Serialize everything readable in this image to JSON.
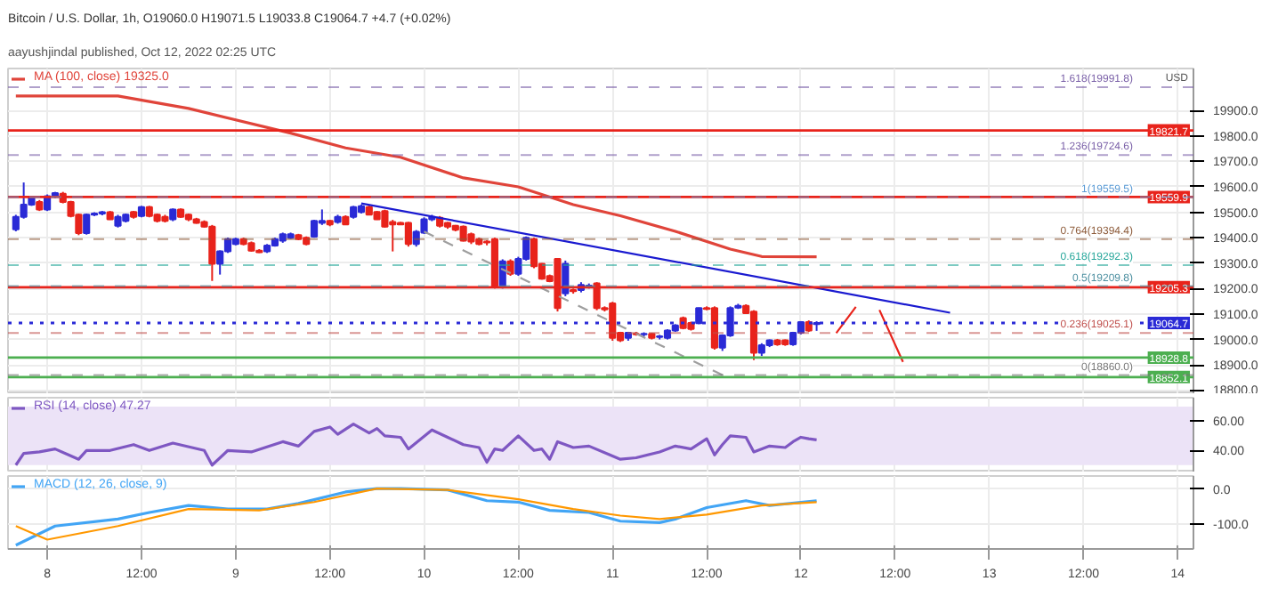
{
  "chart_data": [
    {
      "type": "candlestick",
      "title": "Bitcoin / U.S. Dollar, 1h, O19060.0 H19071.5 L19033.8 C19064.7 +4.7 (+0.02%)",
      "ylabel": "USD",
      "annotations": [
        "aayushjindal published, Oct 12, 2022 02:25 UTC"
      ],
      "x": [
        "2022-10-07T20:00",
        "2022-10-07T21:00",
        "2022-10-07T22:00",
        "2022-10-07T23:00",
        "2022-10-08T00:00",
        "2022-10-08T01:00",
        "2022-10-08T02:00",
        "2022-10-08T03:00",
        "2022-10-08T04:00",
        "2022-10-08T05:00",
        "2022-10-08T06:00",
        "2022-10-08T07:00",
        "2022-10-08T08:00",
        "2022-10-08T09:00",
        "2022-10-08T10:00",
        "2022-10-08T11:00",
        "2022-10-08T12:00",
        "2022-10-08T13:00",
        "2022-10-08T14:00",
        "2022-10-08T15:00",
        "2022-10-08T16:00",
        "2022-10-08T17:00",
        "2022-10-08T18:00",
        "2022-10-08T19:00",
        "2022-10-08T20:00",
        "2022-10-08T21:00",
        "2022-10-08T22:00",
        "2022-10-08T23:00",
        "2022-10-09T00:00",
        "2022-10-09T01:00",
        "2022-10-09T02:00",
        "2022-10-09T03:00",
        "2022-10-09T04:00",
        "2022-10-09T05:00",
        "2022-10-09T06:00",
        "2022-10-09T07:00",
        "2022-10-09T08:00",
        "2022-10-09T09:00",
        "2022-10-09T10:00",
        "2022-10-09T11:00",
        "2022-10-09T12:00",
        "2022-10-09T13:00",
        "2022-10-09T14:00",
        "2022-10-09T15:00",
        "2022-10-09T16:00",
        "2022-10-09T17:00",
        "2022-10-09T18:00",
        "2022-10-09T19:00",
        "2022-10-09T20:00",
        "2022-10-09T21:00",
        "2022-10-09T22:00",
        "2022-10-09T23:00",
        "2022-10-10T00:00",
        "2022-10-10T01:00",
        "2022-10-10T02:00",
        "2022-10-10T03:00",
        "2022-10-10T04:00",
        "2022-10-10T05:00",
        "2022-10-10T06:00",
        "2022-10-10T07:00",
        "2022-10-10T08:00",
        "2022-10-10T09:00",
        "2022-10-10T10:00",
        "2022-10-10T11:00",
        "2022-10-10T12:00",
        "2022-10-10T13:00",
        "2022-10-10T14:00",
        "2022-10-10T15:00",
        "2022-10-10T16:00",
        "2022-10-10T17:00",
        "2022-10-10T18:00",
        "2022-10-10T19:00",
        "2022-10-10T20:00",
        "2022-10-10T21:00",
        "2022-10-10T22:00",
        "2022-10-10T23:00",
        "2022-10-11T00:00",
        "2022-10-11T01:00",
        "2022-10-11T02:00",
        "2022-10-11T03:00",
        "2022-10-11T04:00",
        "2022-10-11T05:00",
        "2022-10-11T06:00",
        "2022-10-11T07:00",
        "2022-10-11T08:00",
        "2022-10-11T09:00",
        "2022-10-11T10:00",
        "2022-10-11T11:00",
        "2022-10-11T12:00",
        "2022-10-11T13:00",
        "2022-10-11T14:00",
        "2022-10-11T15:00",
        "2022-10-11T16:00",
        "2022-10-11T17:00",
        "2022-10-11T18:00",
        "2022-10-11T19:00",
        "2022-10-11T20:00",
        "2022-10-11T21:00",
        "2022-10-11T22:00",
        "2022-10-11T23:00",
        "2022-10-12T00:00",
        "2022-10-12T01:00",
        "2022-10-12T02:00"
      ],
      "ohlc": [
        [
          19433,
          19490,
          19425,
          19482
        ],
        [
          19482,
          19617,
          19475,
          19530
        ],
        [
          19530,
          19565,
          19525,
          19559
        ],
        [
          19540,
          19548,
          19505,
          19511
        ],
        [
          19511,
          19570,
          19505,
          19563
        ],
        [
          19563,
          19580,
          19555,
          19575
        ],
        [
          19573,
          19580,
          19535,
          19540
        ],
        [
          19540,
          19545,
          19480,
          19485
        ],
        [
          19491,
          19495,
          19410,
          19418
        ],
        [
          19418,
          19495,
          19412,
          19491
        ],
        [
          19491,
          19500,
          19485,
          19495
        ],
        [
          19495,
          19505,
          19488,
          19500
        ],
        [
          19500,
          19505,
          19470,
          19472
        ],
        [
          19447,
          19490,
          19440,
          19482
        ],
        [
          19466,
          19495,
          19460,
          19491
        ],
        [
          19501,
          19505,
          19475,
          19482
        ],
        [
          19485,
          19525,
          19480,
          19520
        ],
        [
          19520,
          19525,
          19480,
          19485
        ],
        [
          19491,
          19495,
          19460,
          19466
        ],
        [
          19482,
          19490,
          19460,
          19466
        ],
        [
          19472,
          19515,
          19465,
          19511
        ],
        [
          19511,
          19515,
          19478,
          19482
        ],
        [
          19491,
          19495,
          19465,
          19472
        ],
        [
          19472,
          19478,
          19455,
          19458
        ],
        [
          19462,
          19468,
          19440,
          19443
        ],
        [
          19443,
          19450,
          19230,
          19297
        ],
        [
          19297,
          19350,
          19255,
          19346
        ],
        [
          19346,
          19400,
          19340,
          19394
        ],
        [
          19375,
          19400,
          19370,
          19394
        ],
        [
          19394,
          19400,
          19370,
          19375
        ],
        [
          19379,
          19385,
          19345,
          19349
        ],
        [
          19349,
          19355,
          19340,
          19343
        ],
        [
          19346,
          19375,
          19340,
          19369
        ],
        [
          19369,
          19400,
          19365,
          19394
        ],
        [
          19388,
          19420,
          19380,
          19414
        ],
        [
          19400,
          19420,
          19395,
          19414
        ],
        [
          19410,
          19415,
          19390,
          19394
        ],
        [
          19400,
          19405,
          19370,
          19375
        ],
        [
          19404,
          19470,
          19400,
          19466
        ],
        [
          19458,
          19511,
          19450,
          19466
        ],
        [
          19466,
          19470,
          19445,
          19452
        ],
        [
          19462,
          19490,
          19455,
          19482
        ],
        [
          19482,
          19488,
          19450,
          19452
        ],
        [
          19482,
          19525,
          19475,
          19520
        ],
        [
          19501,
          19530,
          19495,
          19524
        ],
        [
          19520,
          19528,
          19490,
          19491
        ],
        [
          19501,
          19505,
          19470,
          19472
        ],
        [
          19505,
          19510,
          19440,
          19443
        ],
        [
          19462,
          19470,
          19346,
          19452
        ],
        [
          19458,
          19462,
          19450,
          19452
        ],
        [
          19458,
          19462,
          19365,
          19375
        ],
        [
          19375,
          19430,
          19365,
          19423
        ],
        [
          19420,
          19480,
          19415,
          19472
        ],
        [
          19472,
          19490,
          19465,
          19482
        ],
        [
          19478,
          19485,
          19440,
          19447
        ],
        [
          19458,
          19462,
          19435,
          19443
        ],
        [
          19447,
          19450,
          19425,
          19431
        ],
        [
          19443,
          19448,
          19385,
          19388
        ],
        [
          19414,
          19420,
          19375,
          19385
        ],
        [
          19394,
          19400,
          19370,
          19375
        ],
        [
          19385,
          19390,
          19370,
          19381
        ],
        [
          19394,
          19400,
          19200,
          19210
        ],
        [
          19210,
          19315,
          19200,
          19307
        ],
        [
          19307,
          19315,
          19250,
          19258
        ],
        [
          19258,
          19325,
          19250,
          19317
        ],
        [
          19317,
          19405,
          19310,
          19400
        ],
        [
          19394,
          19400,
          19280,
          19288
        ],
        [
          19297,
          19300,
          19235,
          19239
        ],
        [
          19249,
          19255,
          19225,
          19229
        ],
        [
          19317,
          19320,
          19110,
          19123
        ],
        [
          19181,
          19310,
          19170,
          19297
        ],
        [
          19194,
          19200,
          19180,
          19190
        ],
        [
          19194,
          19225,
          19185,
          19214
        ],
        [
          19210,
          19220,
          19200,
          19212
        ],
        [
          19220,
          19225,
          19115,
          19123
        ],
        [
          19123,
          19130,
          19110,
          19118
        ],
        [
          19142,
          19148,
          18995,
          19006
        ],
        [
          19026,
          19030,
          18990,
          18997
        ],
        [
          19006,
          19030,
          18995,
          19026
        ],
        [
          19022,
          19030,
          19015,
          19020
        ],
        [
          19020,
          19028,
          19012,
          19022
        ],
        [
          19022,
          19026,
          19000,
          19006
        ],
        [
          19010,
          19018,
          19000,
          19012
        ],
        [
          19006,
          19040,
          19000,
          19035
        ],
        [
          19035,
          19060,
          19030,
          19055
        ],
        [
          19084,
          19090,
          19040,
          19045
        ],
        [
          19065,
          19070,
          19035,
          19041
        ],
        [
          19064,
          19125,
          19060,
          19123
        ],
        [
          19123,
          19130,
          19115,
          19120
        ],
        [
          19123,
          19130,
          18960,
          18968
        ],
        [
          18968,
          19020,
          18955,
          19016
        ],
        [
          19016,
          19130,
          19010,
          19123
        ],
        [
          19125,
          19140,
          19120,
          19132
        ],
        [
          19132,
          19138,
          19100,
          19103
        ],
        [
          19109,
          19115,
          18919,
          18948
        ],
        [
          18948,
          18985,
          18935,
          18977
        ],
        [
          18977,
          19000,
          18970,
          18997
        ],
        [
          18997,
          19002,
          18975,
          18981
        ],
        [
          18997,
          19000,
          18975,
          18981
        ],
        [
          18981,
          19030,
          18975,
          19026
        ],
        [
          19026,
          19072,
          19020,
          19068
        ],
        [
          19068,
          19075,
          19030,
          19035
        ],
        [
          19060,
          19071.5,
          19033.8,
          19064.7
        ]
      ],
      "colors": [
        "#2a2ad6",
        "#2a2ad6",
        "#2a2ad6",
        "#e8231b",
        "#2a2ad6",
        "#2a2ad6",
        "#e8231b",
        "#e8231b",
        "#e8231b",
        "#2a2ad6",
        "#2a2ad6",
        "#2a2ad6",
        "#e8231b",
        "#2a2ad6",
        "#2a2ad6",
        "#e8231b",
        "#2a2ad6",
        "#e8231b",
        "#e8231b",
        "#e8231b",
        "#2a2ad6",
        "#e8231b",
        "#e8231b",
        "#e8231b",
        "#e8231b",
        "#e8231b",
        "#2a2ad6",
        "#2a2ad6",
        "#2a2ad6",
        "#e8231b",
        "#e8231b",
        "#e8231b",
        "#2a2ad6",
        "#2a2ad6",
        "#2a2ad6",
        "#2a2ad6",
        "#e8231b",
        "#e8231b",
        "#2a2ad6",
        "#2a2ad6",
        "#e8231b",
        "#2a2ad6",
        "#e8231b",
        "#2a2ad6",
        "#2a2ad6",
        "#e8231b",
        "#e8231b",
        "#e8231b",
        "#e8231b",
        "#e8231b",
        "#e8231b",
        "#2a2ad6",
        "#2a2ad6",
        "#2a2ad6",
        "#e8231b",
        "#e8231b",
        "#e8231b",
        "#e8231b",
        "#e8231b",
        "#e8231b",
        "#e8231b",
        "#e8231b",
        "#2a2ad6",
        "#e8231b",
        "#2a2ad6",
        "#2a2ad6",
        "#e8231b",
        "#e8231b",
        "#e8231b",
        "#e8231b",
        "#2a2ad6",
        "#e8231b",
        "#2a2ad6",
        "#2a2ad6",
        "#e8231b",
        "#e8231b",
        "#e8231b",
        "#e8231b",
        "#2a2ad6",
        "#e8231b",
        "#2a2ad6",
        "#e8231b",
        "#2a2ad6",
        "#2a2ad6",
        "#2a2ad6",
        "#e8231b",
        "#e8231b",
        "#2a2ad6",
        "#e8231b",
        "#e8231b",
        "#2a2ad6",
        "#2a2ad6",
        "#2a2ad6",
        "#e8231b",
        "#e8231b",
        "#2a2ad6",
        "#2a2ad6",
        "#e8231b",
        "#e8231b",
        "#2a2ad6",
        "#2a2ad6",
        "#e8231b",
        "#2a2ad6"
      ],
      "series": [
        {
          "type": "line",
          "name": "MA (100, close) 19325.0",
          "color": "#e0443a",
          "x": [
            "2022-10-07T20:00",
            "2022-10-08T09:00",
            "2022-10-08T18:00",
            "2022-10-09T07:00",
            "2022-10-09T14:00",
            "2022-10-09T21:00",
            "2022-10-10T05:00",
            "2022-10-10T12:00",
            "2022-10-10T19:00",
            "2022-10-11T01:00",
            "2022-10-11T08:00",
            "2022-10-11T15:00",
            "2022-10-11T19:00",
            "2022-10-12T02:00"
          ],
          "values": [
            19957,
            19957,
            19908,
            19811,
            19753,
            19716,
            19635,
            19600,
            19530,
            19486,
            19425,
            19355,
            19326,
            19325
          ]
        },
        {
          "type": "line",
          "color": "#1a1ad0",
          "x": [
            "2022-10-09T16:00",
            "2022-10-12T19:00"
          ],
          "values": [
            19535,
            19105
          ]
        },
        {
          "type": "line",
          "color": "#e8231b",
          "x": [
            "2022-10-12T04:30",
            "2022-10-12T07:00",
            "2022-10-12T08:30",
            "2022-10-12T10:00",
            "2022-10-12T13:00"
          ],
          "values": [
            19025,
            19128,
            null,
            19116,
            18912
          ]
        },
        {
          "type": "line",
          "color": "#9e9e9e",
          "line_style": "dashed",
          "x": [
            "2022-10-10T00:00",
            "2022-10-11T14:00"
          ],
          "values": [
            19424,
            18860
          ]
        }
      ],
      "ref_lines": [
        {
          "axis": "y",
          "value": 19821.7,
          "label": "19821.7",
          "color": "#e8231b",
          "line_style": "solid"
        },
        {
          "axis": "y",
          "value": 19559.9,
          "label": "19559.9",
          "color": "#e8231b",
          "line_style": "solid"
        },
        {
          "axis": "y",
          "value": 19205.3,
          "label": "19205.3",
          "color": "#e8231b",
          "line_style": "solid"
        },
        {
          "axis": "y",
          "value": 18928.8,
          "label": "18928.8",
          "color": "#4caf50",
          "line_style": "solid"
        },
        {
          "axis": "y",
          "value": 18852.1,
          "label": "18852.1",
          "color": "#4caf50",
          "line_style": "solid"
        },
        {
          "axis": "y",
          "value": 19064.7,
          "label": "19064.7",
          "color": "#2a2ad6",
          "line_style": "dotted"
        },
        {
          "axis": "y",
          "value": 19991.8,
          "label": "1.618(19991.8)",
          "color": "#7b61a8",
          "line_style": "dashed"
        },
        {
          "axis": "y",
          "value": 19724.6,
          "label": "1.236(19724.6)",
          "color": "#7b61a8",
          "line_style": "dashed"
        },
        {
          "axis": "y",
          "value": 19559.5,
          "label": "1(19559.5)",
          "color": "#5b9bd5",
          "line_style": "dashed"
        },
        {
          "axis": "y",
          "value": 19394.4,
          "label": "0.764(19394.4)",
          "color": "#8d5b3a",
          "line_style": "dashed"
        },
        {
          "axis": "y",
          "value": 19292.3,
          "label": "0.618(19292.3)",
          "color": "#26a69a",
          "line_style": "dashed"
        },
        {
          "axis": "y",
          "value": 19209.8,
          "label": "0.5(19209.8)",
          "color": "#4c8fa0",
          "line_style": "dashed"
        },
        {
          "axis": "y",
          "value": 19025.1,
          "label": "0.236(19025.1)",
          "color": "#c0504d",
          "line_style": "dashed"
        },
        {
          "axis": "y",
          "value": 18860.0,
          "label": "0(18860.0)",
          "color": "#777777",
          "line_style": "dashed"
        }
      ],
      "xlim": [
        "2022-10-07T19:00",
        "2022-10-14T02:00"
      ],
      "xticks": [
        "2022-10-08",
        "2022-10-08T12:00",
        "2022-10-09",
        "2022-10-09T12:00",
        "2022-10-10",
        "2022-10-10T12:00",
        "2022-10-11",
        "2022-10-11T12:00",
        "2022-10-12",
        "2022-10-12T12:00",
        "2022-10-13",
        "2022-10-13T12:00",
        "2022-10-14"
      ],
      "ylim": [
        18785,
        20065
      ],
      "yticks": [
        {
          "value": 18800,
          "label": "18800.0"
        },
        {
          "value": 18900,
          "label": "18900.0"
        },
        {
          "value": 19000,
          "label": "19000.0"
        },
        {
          "value": 19100,
          "label": "19100.0"
        },
        {
          "value": 19200,
          "label": "19200.0"
        },
        {
          "value": 19300,
          "label": "19300.0"
        },
        {
          "value": 19400,
          "label": "19400.0"
        },
        {
          "value": 19500,
          "label": "19500.0"
        },
        {
          "value": 19600,
          "label": "19600.0"
        },
        {
          "value": 19700,
          "label": "19700.0"
        },
        {
          "value": 19800,
          "label": "19800.0"
        },
        {
          "value": 19900,
          "label": "19900.0"
        }
      ],
      "grid": true,
      "legend": "top left",
      "tick_labels": "y"
    },
    {
      "type": "line",
      "series": [
        {
          "name": "RSI (14, close) 47.27",
          "color": "#7e57c2",
          "x": [
            "2022-10-07T20:00",
            "2022-10-07T21:00",
            "2022-10-07T23:00",
            "2022-10-08T01:00",
            "2022-10-08T04:00",
            "2022-10-08T05:00",
            "2022-10-08T08:00",
            "2022-10-08T11:00",
            "2022-10-08T13:00",
            "2022-10-08T16:00",
            "2022-10-08T20:00",
            "2022-10-08T21:00",
            "2022-10-08T23:00",
            "2022-10-09T02:00",
            "2022-10-09T06:00",
            "2022-10-09T08:00",
            "2022-10-09T10:00",
            "2022-10-09T12:00",
            "2022-10-09T13:00",
            "2022-10-09T15:00",
            "2022-10-09T17:00",
            "2022-10-09T18:00",
            "2022-10-09T19:00",
            "2022-10-09T21:00",
            "2022-10-09T22:00",
            "2022-10-10T01:00",
            "2022-10-10T03:00",
            "2022-10-10T05:00",
            "2022-10-10T07:00",
            "2022-10-10T08:00",
            "2022-10-10T09:00",
            "2022-10-10T10:00",
            "2022-10-10T12:00",
            "2022-10-10T14:00",
            "2022-10-10T15:00",
            "2022-10-10T16:00",
            "2022-10-10T17:00",
            "2022-10-10T19:00",
            "2022-10-10T21:00",
            "2022-10-11T01:00",
            "2022-10-11T03:00",
            "2022-10-11T06:00",
            "2022-10-11T08:00",
            "2022-10-11T10:00",
            "2022-10-11T12:00",
            "2022-10-11T13:00",
            "2022-10-11T14:00",
            "2022-10-11T15:00",
            "2022-10-11T17:00",
            "2022-10-11T18:00",
            "2022-10-11T20:00",
            "2022-10-11T22:00",
            "2022-10-11T23:00",
            "2022-10-12T00:00",
            "2022-10-12T01:00",
            "2022-10-12T02:00"
          ],
          "values": [
            30,
            38,
            39,
            41,
            34,
            40,
            40,
            44,
            40,
            45,
            40,
            30,
            40,
            39,
            46,
            43,
            53,
            56,
            51,
            58,
            52,
            55,
            50,
            49,
            41,
            54,
            49,
            44,
            42,
            32,
            41,
            40,
            50,
            40,
            41,
            34,
            46,
            42,
            43,
            34,
            35,
            39,
            43,
            41,
            48,
            37,
            44,
            50,
            49,
            39,
            43,
            42,
            46,
            49,
            48,
            47.27
          ]
        }
      ],
      "bands": [
        {
          "axis": "y",
          "from": 30,
          "to": 70,
          "color": "#ece3f7"
        }
      ],
      "xlim": [
        "2022-10-07T19:00",
        "2022-10-14T02:00"
      ],
      "xticks": [
        "2022-10-08",
        "2022-10-08T12:00",
        "2022-10-09",
        "2022-10-09T12:00",
        "2022-10-10",
        "2022-10-10T12:00",
        "2022-10-11",
        "2022-10-11T12:00",
        "2022-10-12",
        "2022-10-12T12:00",
        "2022-10-13",
        "2022-10-13T12:00",
        "2022-10-14"
      ],
      "ylim": [
        25,
        76
      ],
      "yticks": [
        {
          "value": 40,
          "label": "40.00"
        },
        {
          "value": 60,
          "label": "60.00"
        }
      ],
      "grid": true,
      "legend": "top left",
      "tick_labels": "y"
    },
    {
      "type": "line",
      "series": [
        {
          "name": "MACD (12, 26, close, 9)",
          "color": "#42a5f5",
          "x": [
            "2022-10-07T20:00",
            "2022-10-08T01:00",
            "2022-10-08T09:00",
            "2022-10-08T13:00",
            "2022-10-08T18:00",
            "2022-10-08T23:00",
            "2022-10-09T04:00",
            "2022-10-09T08:00",
            "2022-10-09T14:00",
            "2022-10-09T18:00",
            "2022-10-09T21:00",
            "2022-10-10T03:00",
            "2022-10-10T08:00",
            "2022-10-10T12:00",
            "2022-10-10T16:00",
            "2022-10-10T21:00",
            "2022-10-11T01:00",
            "2022-10-11T06:00",
            "2022-10-11T08:00",
            "2022-10-11T12:00",
            "2022-10-11T17:00",
            "2022-10-11T20:00",
            "2022-10-12T02:00"
          ],
          "values": [
            -161,
            -106,
            -86,
            -67,
            -47,
            -57,
            -57,
            -41,
            -8,
            2,
            2,
            -2,
            -33,
            -37,
            -61,
            -67,
            -92,
            -96,
            -86,
            -53,
            -33,
            -47,
            -33
          ]
        },
        {
          "color": "#ff9800",
          "x": [
            "2022-10-07T20:00",
            "2022-10-08T00:00",
            "2022-10-08T09:00",
            "2022-10-08T18:00",
            "2022-10-09T03:00",
            "2022-10-09T10:00",
            "2022-10-09T18:00",
            "2022-10-10T03:00",
            "2022-10-10T12:00",
            "2022-10-10T19:00",
            "2022-10-11T01:00",
            "2022-10-11T06:00",
            "2022-10-11T12:00",
            "2022-10-11T19:00",
            "2022-10-12T02:00"
          ],
          "values": [
            -106,
            -145,
            -106,
            -57,
            -61,
            -37,
            2,
            -2,
            -29,
            -57,
            -76,
            -86,
            -73,
            -47,
            -37
          ]
        }
      ],
      "xlim": [
        "2022-10-07T19:00",
        "2022-10-14T02:00"
      ],
      "xticks": [
        {
          "value": "2022-10-08",
          "label": "8"
        },
        {
          "value": "2022-10-08T12:00",
          "label": "12:00"
        },
        {
          "value": "2022-10-09",
          "label": "9"
        },
        {
          "value": "2022-10-09T12:00",
          "label": "12:00"
        },
        {
          "value": "2022-10-10",
          "label": "10"
        },
        {
          "value": "2022-10-10T12:00",
          "label": "12:00"
        },
        {
          "value": "2022-10-11",
          "label": "11"
        },
        {
          "value": "2022-10-11T12:00",
          "label": "12:00"
        },
        {
          "value": "2022-10-12",
          "label": "12"
        },
        {
          "value": "2022-10-12T12:00",
          "label": "12:00"
        },
        {
          "value": "2022-10-13",
          "label": "13"
        },
        {
          "value": "2022-10-13T12:00",
          "label": "12:00"
        },
        {
          "value": "2022-10-14",
          "label": "14"
        }
      ],
      "ylim": [
        -172,
        38
      ],
      "yticks": [
        {
          "value": -100,
          "label": "-100.0"
        },
        {
          "value": 0,
          "label": "0.0"
        }
      ],
      "grid": true,
      "legend": "top left"
    }
  ]
}
